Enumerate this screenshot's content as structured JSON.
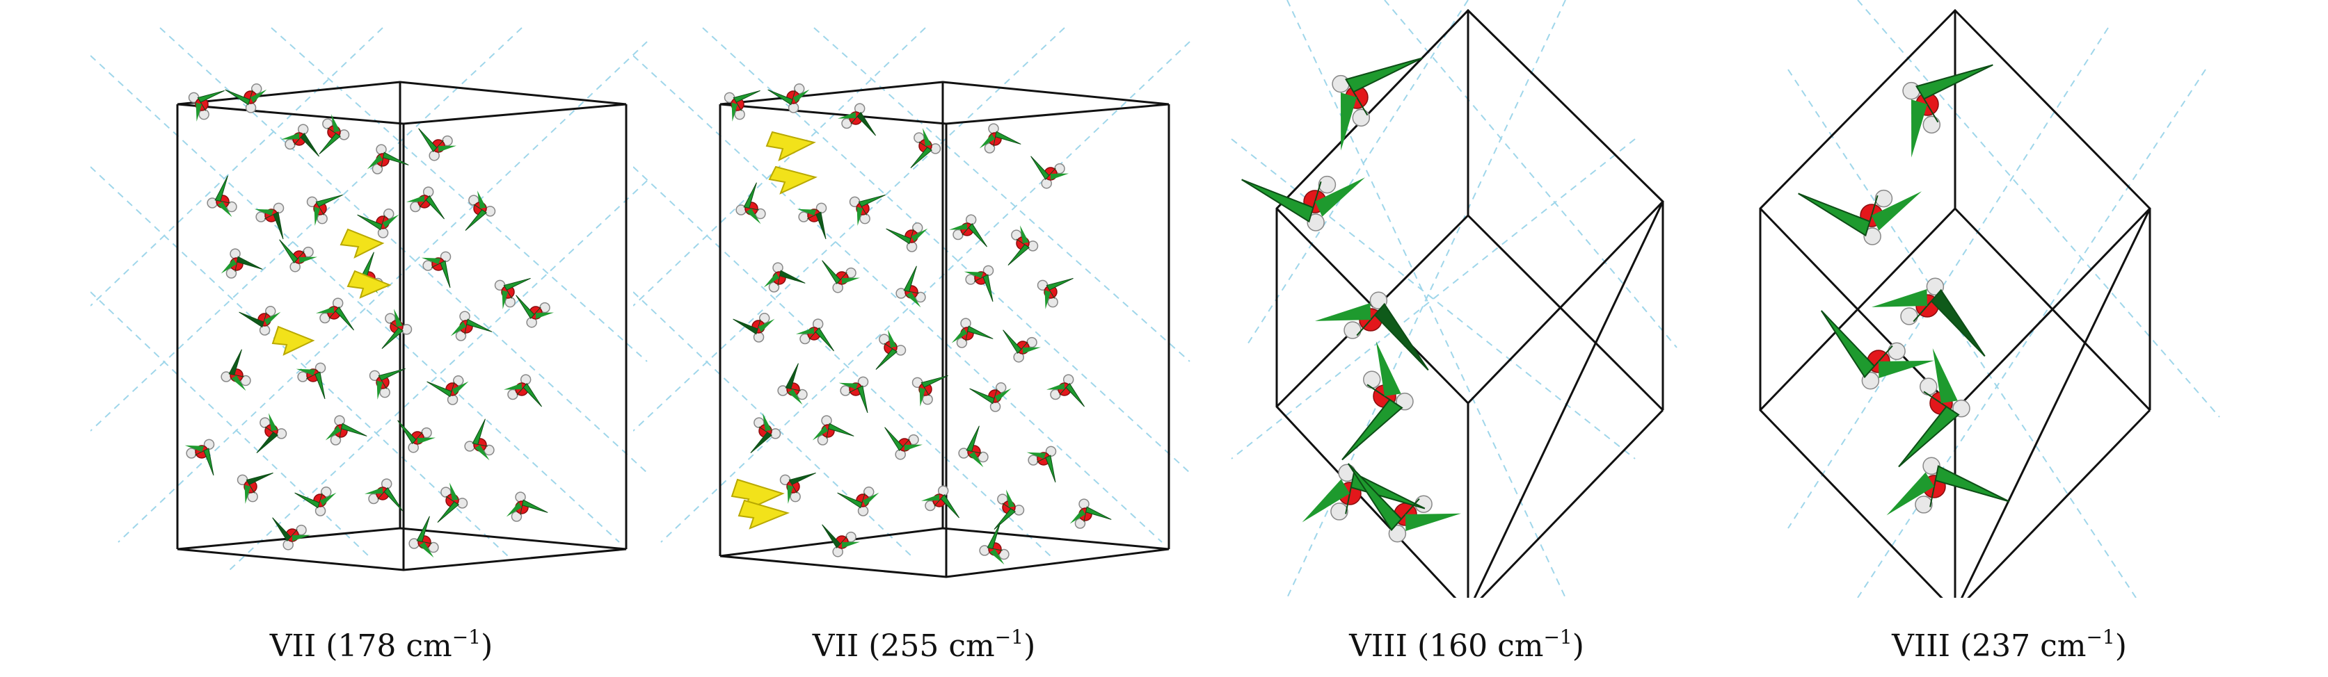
{
  "panels": [
    {
      "caption": "VII (178 cm",
      "sup": "−1",
      "close": ")"
    },
    {
      "caption": "VII (255 cm",
      "sup": "−1",
      "close": ")"
    },
    {
      "caption": "VIII (160 cm",
      "sup": "−1",
      "close": ")"
    },
    {
      "caption": "VIII (237 cm",
      "sup": "−1",
      "close": ")"
    }
  ],
  "colors": {
    "oxygen": "#e3171b",
    "hydrogen": "#e8e8e8",
    "arrow": "#1e9a2e",
    "arrow_dark": "#0f5a1a",
    "highlight_arrow": "#f2e21a",
    "bond_line": "#9fd6ea",
    "cell_line": "#111111"
  },
  "icons": [
    "water-molecule-icon",
    "displacement-arrow-icon"
  ]
}
